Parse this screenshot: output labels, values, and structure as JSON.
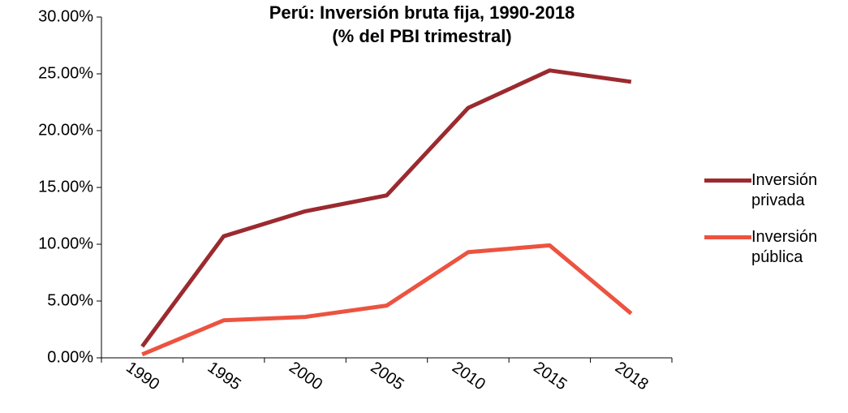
{
  "chart_data": {
    "type": "line",
    "title": "Perú: Inversión bruta fija, 1990-2018",
    "subtitle": "(% del PBI trimestral)",
    "categories": [
      "1990",
      "1995",
      "2000",
      "2005",
      "2010",
      "2015",
      "2018"
    ],
    "series": [
      {
        "name": "Inversión privada",
        "color": "#9b2a2f",
        "values": [
          1.0,
          10.7,
          12.9,
          14.3,
          22.0,
          25.3,
          24.3
        ]
      },
      {
        "name": "Inversión pública",
        "color": "#ec5340",
        "values": [
          0.3,
          3.3,
          3.6,
          4.6,
          9.3,
          9.9,
          3.9
        ]
      }
    ],
    "ylim": [
      0,
      30
    ],
    "yticks": [
      {
        "value": 0,
        "label": "0.00%"
      },
      {
        "value": 5,
        "label": "5.00%"
      },
      {
        "value": 10,
        "label": "10.00%"
      },
      {
        "value": 15,
        "label": "15.00%"
      },
      {
        "value": 20,
        "label": "20.00%"
      },
      {
        "value": 25,
        "label": "25.00%"
      },
      {
        "value": 30,
        "label": "30.00%"
      }
    ],
    "grid": false,
    "legend": "right"
  }
}
